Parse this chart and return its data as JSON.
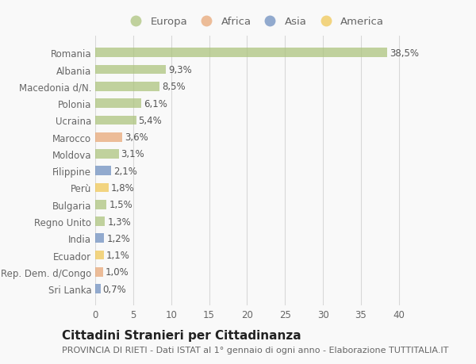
{
  "countries": [
    "Romania",
    "Albania",
    "Macedonia d/N.",
    "Polonia",
    "Ucraina",
    "Marocco",
    "Moldova",
    "Filippine",
    "Perù",
    "Bulgaria",
    "Regno Unito",
    "India",
    "Ecuador",
    "Rep. Dem. d/Congo",
    "Sri Lanka"
  ],
  "values": [
    38.5,
    9.3,
    8.5,
    6.1,
    5.4,
    3.6,
    3.1,
    2.1,
    1.8,
    1.5,
    1.3,
    1.2,
    1.1,
    1.0,
    0.7
  ],
  "labels": [
    "38,5%",
    "9,3%",
    "8,5%",
    "6,1%",
    "5,4%",
    "3,6%",
    "3,1%",
    "2,1%",
    "1,8%",
    "1,5%",
    "1,3%",
    "1,2%",
    "1,1%",
    "1,0%",
    "0,7%"
  ],
  "categories": [
    "Europa",
    "Europa",
    "Europa",
    "Europa",
    "Europa",
    "Africa",
    "Europa",
    "Asia",
    "America",
    "Europa",
    "Europa",
    "Asia",
    "America",
    "Africa",
    "Asia"
  ],
  "colors": {
    "Europa": "#adc47e",
    "Africa": "#e8a878",
    "Asia": "#7090c0",
    "America": "#f0c858"
  },
  "legend_order": [
    "Europa",
    "Africa",
    "Asia",
    "America"
  ],
  "xlim": [
    0,
    42
  ],
  "xticks": [
    0,
    5,
    10,
    15,
    20,
    25,
    30,
    35,
    40
  ],
  "title": "Cittadini Stranieri per Cittadinanza",
  "subtitle": "PROVINCIA DI RIETI - Dati ISTAT al 1° gennaio di ogni anno - Elaborazione TUTTITALIA.IT",
  "background_color": "#f9f9f9",
  "bar_height": 0.55,
  "grid_color": "#d8d8d8",
  "text_color": "#666666",
  "bar_text_color": "#555555",
  "title_fontsize": 11,
  "subtitle_fontsize": 8,
  "label_fontsize": 8.5,
  "tick_fontsize": 8.5,
  "legend_fontsize": 9.5
}
